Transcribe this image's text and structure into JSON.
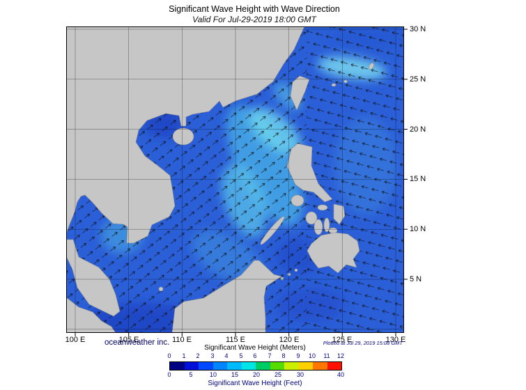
{
  "title": "Significant Wave Height with Wave Direction",
  "subtitle": "Valid For Jul-29-2019 18:00 GMT",
  "branding": "oceanweather inc.",
  "plotted": "Plotted at Jul 29, 2019 15:08 GMT",
  "axes": {
    "lon": [
      "100 E",
      "105 E",
      "110 E",
      "115 E",
      "120 E",
      "125 E",
      "130 E"
    ],
    "lat": [
      "30 N",
      "25 N",
      "20 N",
      "15 N",
      "10 N",
      "5 N"
    ]
  },
  "legend": {
    "meters_title": "Significant Wave Height (Meters)",
    "feet_title": "Significant Wave Height (Feet)",
    "meter_ticks": [
      "0",
      "1",
      "2",
      "3",
      "4",
      "5",
      "6",
      "7",
      "8",
      "9",
      "10",
      "11",
      "12"
    ],
    "feet_ticks": [
      "0",
      "5",
      "10",
      "15",
      "20",
      "25",
      "30",
      "40"
    ],
    "colors": [
      "#000082",
      "#0010d8",
      "#0048ff",
      "#0084ff",
      "#00baff",
      "#00e6e6",
      "#00cc66",
      "#55dd00",
      "#ccee00",
      "#ffd000",
      "#ff7700",
      "#ff1100"
    ]
  },
  "colors": {
    "sea_base": "#2b5fd8",
    "land": "#c6c6c6",
    "label_blue": "#000082"
  }
}
